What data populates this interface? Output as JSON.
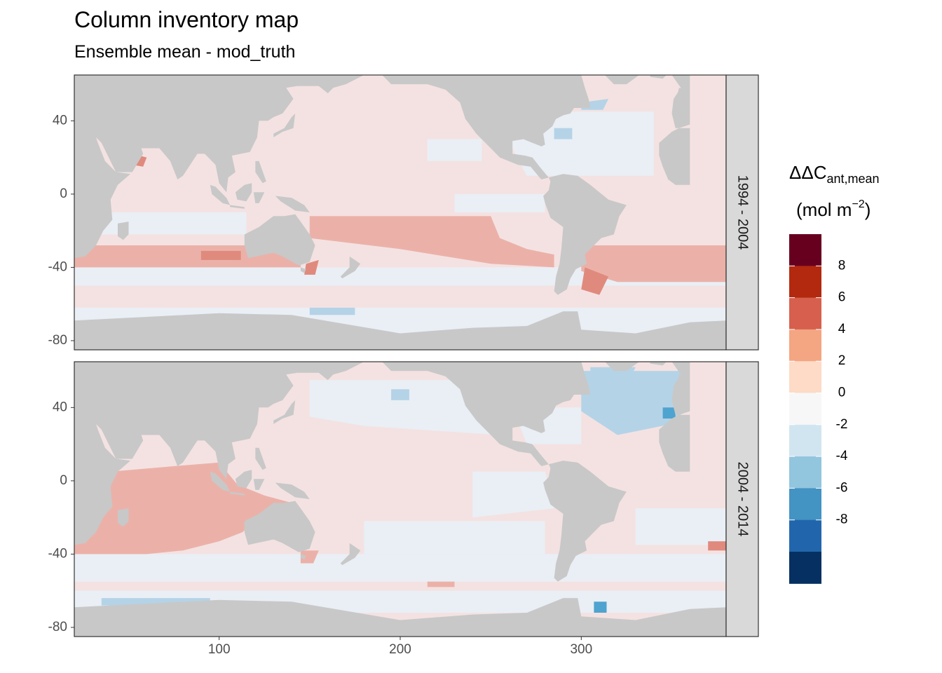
{
  "title": "Column inventory map",
  "subtitle": "Ensemble mean - mod_truth",
  "chart_data": {
    "type": "heatmap",
    "panels": [
      "1994 - 2004",
      "2004 - 2014"
    ],
    "x_ticks": [
      100,
      200,
      300
    ],
    "y_ticks": [
      40,
      0,
      -40,
      -80
    ],
    "xlim": [
      20,
      380
    ],
    "ylim": [
      -85,
      65
    ],
    "legend": {
      "title_main": "ΔΔC",
      "title_sub": "ant,mean",
      "unit_base": "(mol m",
      "unit_exp": "−2",
      "unit_end": ")",
      "labels": [
        "8",
        "6",
        "4",
        "2",
        "0",
        "-2",
        "-4",
        "-6",
        "-8"
      ],
      "colors": [
        "#67001f",
        "#b2290f",
        "#d6604d",
        "#f4a582",
        "#fddbc7",
        "#f7f7f7",
        "#d1e5f0",
        "#92c5de",
        "#4393c3",
        "#2166ac",
        "#053061"
      ]
    },
    "colors": {
      "land": "#c8c8c8",
      "pos_light": "#f4e2e2",
      "pos_mid": "#ebb1a8",
      "pos_strong": "#e08a7e",
      "neg_light": "#e9eff5",
      "neg_mid": "#b5d3e7",
      "neg_strong": "#4fa3cf"
    }
  }
}
